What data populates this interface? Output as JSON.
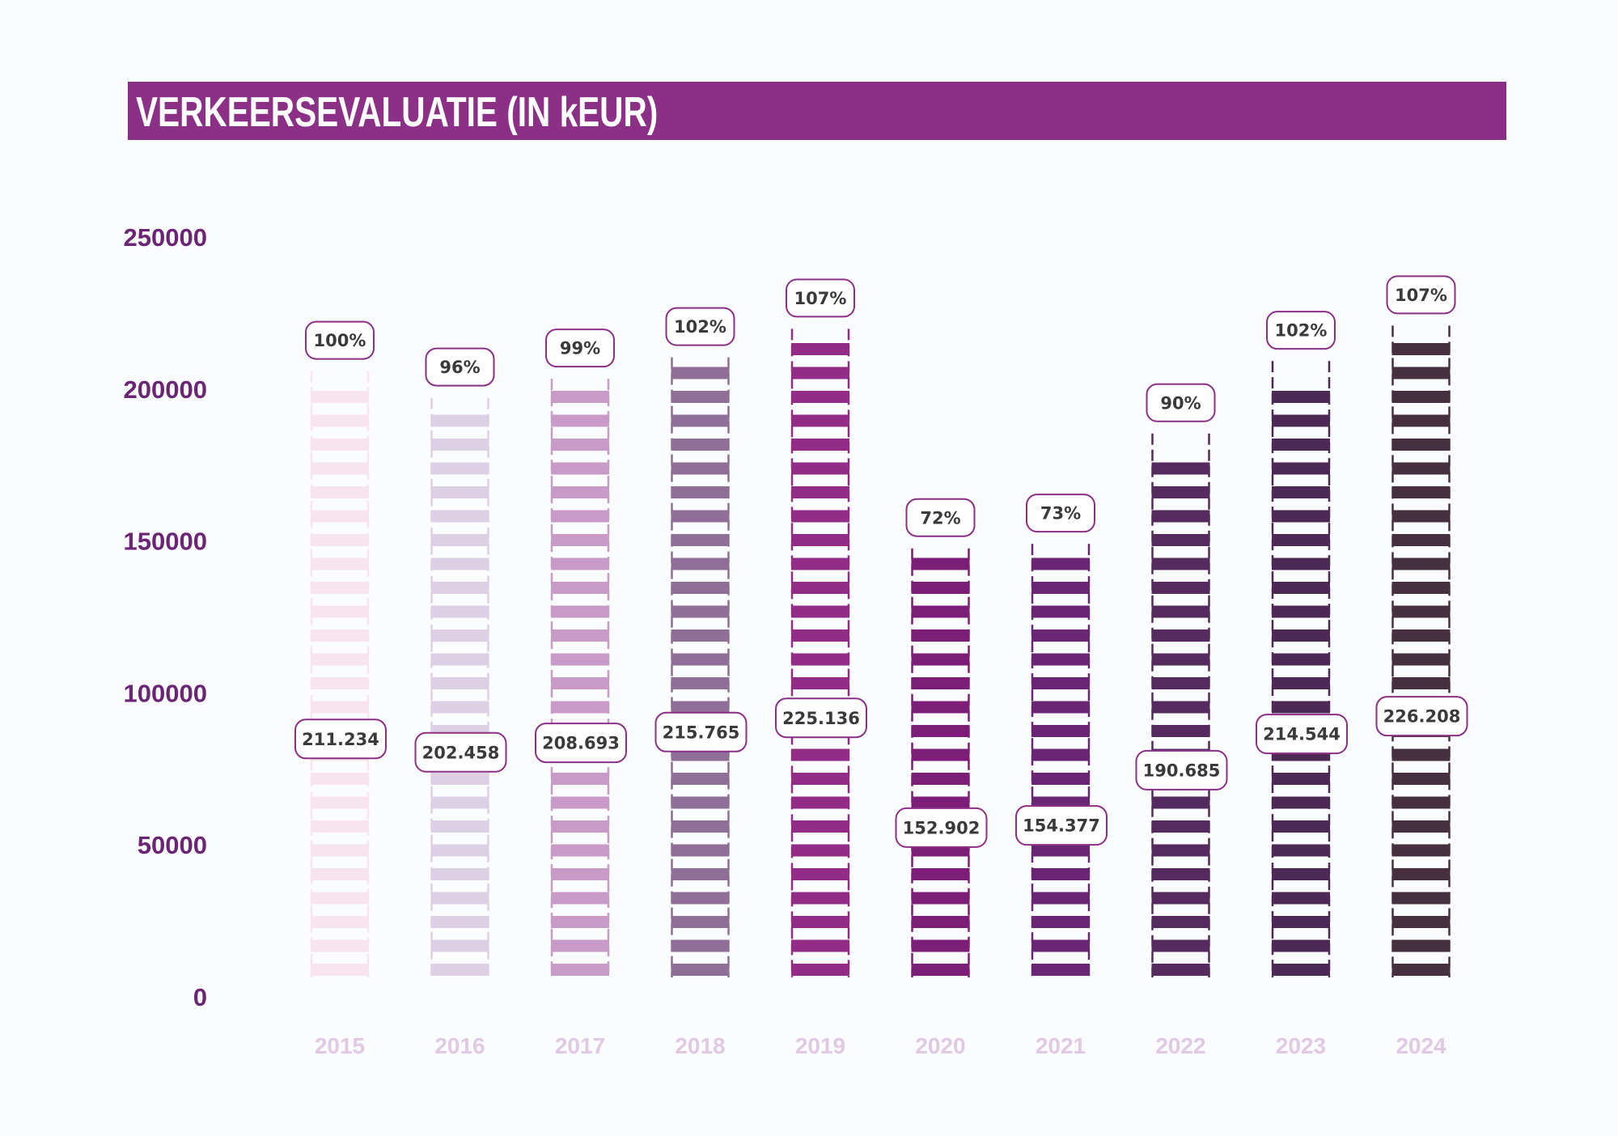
{
  "title": "VERKEERSEVALUATIE (IN kEUR)",
  "colors": {
    "title_bar": "#8c2f86",
    "axis_text": "#6a2574",
    "year_text": "#e2c9e3",
    "label_text": "#3a3a3a",
    "label_border": "#8c2f86"
  },
  "chart_data": {
    "type": "bar",
    "title": "VERKEERSEVALUATIE (IN kEUR)",
    "xlabel": "",
    "ylabel": "",
    "ylim": [
      0,
      250000
    ],
    "yticks": [
      "250000",
      "200000",
      "150000",
      "100000",
      "50000",
      "0"
    ],
    "yticks_values": [
      250000,
      200000,
      150000,
      100000,
      50000,
      0
    ],
    "grid": false,
    "legend": "none",
    "categories": [
      "2015",
      "2016",
      "2017",
      "2018",
      "2019",
      "2020",
      "2021",
      "2022",
      "2023",
      "2024"
    ],
    "values": [
      211234,
      202458,
      208693,
      215765,
      225136,
      152902,
      154377,
      190685,
      214544,
      226208
    ],
    "value_labels": [
      "211.234",
      "202.458",
      "208.693",
      "215.765",
      "225.136",
      "152.902",
      "154.377",
      "190.685",
      "214.544",
      "226.208"
    ],
    "percent_labels": [
      "100%",
      "96%",
      "99%",
      "102%",
      "107%",
      "72%",
      "73%",
      "90%",
      "102%",
      "107%"
    ],
    "bar_colors": [
      "#f7e4ef",
      "#ded0e4",
      "#c89ac8",
      "#8f6f98",
      "#922c87",
      "#7c1e78",
      "#6a2574",
      "#542a5f",
      "#4d2a55",
      "#46303f"
    ]
  }
}
